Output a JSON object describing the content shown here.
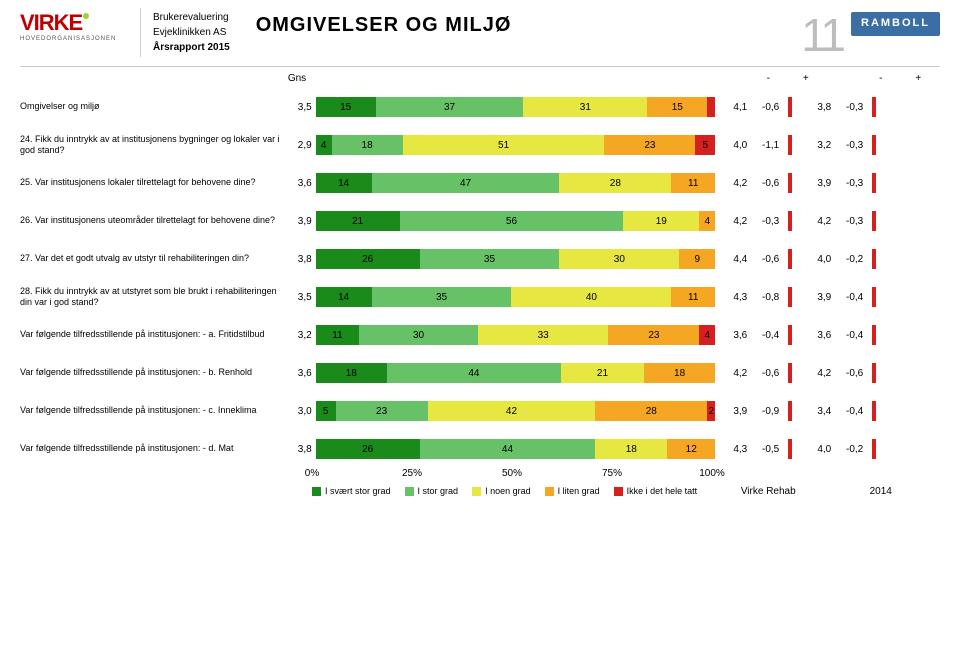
{
  "header": {
    "org_logo_text": "VIRKE",
    "org_logo_sub": "HOVEDORGANISASJONEN",
    "meta_line1": "Brukerevaluering",
    "meta_line2": "Evjeklinikken AS",
    "meta_line3": "Årsrapport 2015",
    "title": "OMGIVELSER OG MILJØ",
    "page_number": "11",
    "partner_logo": "RAMBOLL"
  },
  "col_headers": {
    "gns": "Gns",
    "minus1": "-",
    "plus1": "+",
    "minus2": "-",
    "plus2": "+"
  },
  "chart": {
    "type": "stacked-bar-horizontal",
    "xlim": [
      0,
      100
    ],
    "x_ticks": [
      0,
      25,
      50,
      75,
      100
    ],
    "x_tick_labels": [
      "0%",
      "25%",
      "50%",
      "75%",
      "100%"
    ],
    "segment_colors": [
      "#1a8a1a",
      "#67c167",
      "#e7e741",
      "#f5a623",
      "#d62020"
    ],
    "tick_color": "#d62020",
    "legend": [
      {
        "label": "I svært stor grad",
        "color": "#1a8a1a"
      },
      {
        "label": "I stor grad",
        "color": "#67c167"
      },
      {
        "label": "I noen grad",
        "color": "#e7e741"
      },
      {
        "label": "I liten grad",
        "color": "#f5a623"
      },
      {
        "label": "Ikke i det hele tatt",
        "color": "#d62020"
      }
    ],
    "ref_col1": "Virke Rehab",
    "ref_col2": "2014",
    "rows": [
      {
        "label": "Omgivelser og miljø",
        "gns": "3,5",
        "segs": [
          15,
          37,
          31,
          15,
          2
        ],
        "seg_labels": [
          "15",
          "37",
          "31",
          "15",
          ""
        ],
        "v1": "4,1",
        "d1": "-0,6",
        "v2": "3,8",
        "d2": "-0,3"
      },
      {
        "label": "24. Fikk du inntrykk av at institusjonens bygninger og lokaler var i god stand?",
        "gns": "2,9",
        "segs": [
          4,
          18,
          51,
          23,
          5
        ],
        "seg_labels": [
          "4",
          "18",
          "51",
          "23",
          "5"
        ],
        "v1": "4,0",
        "d1": "-1,1",
        "v2": "3,2",
        "d2": "-0,3"
      },
      {
        "label": "25. Var institusjonens lokaler tilrettelagt for behovene dine?",
        "gns": "3,6",
        "segs": [
          14,
          47,
          28,
          11,
          0
        ],
        "seg_labels": [
          "14",
          "47",
          "28",
          "11",
          ""
        ],
        "v1": "4,2",
        "d1": "-0,6",
        "v2": "3,9",
        "d2": "-0,3"
      },
      {
        "label": "26. Var institusjonens uteområder tilrettelagt for behovene dine?",
        "gns": "3,9",
        "segs": [
          21,
          56,
          19,
          4,
          0
        ],
        "seg_labels": [
          "21",
          "56",
          "19",
          "4",
          ""
        ],
        "v1": "4,2",
        "d1": "-0,3",
        "v2": "4,2",
        "d2": "-0,3"
      },
      {
        "label": "27. Var det et godt utvalg av utstyr til rehabiliteringen din?",
        "gns": "3,8",
        "segs": [
          26,
          35,
          30,
          9,
          0
        ],
        "seg_labels": [
          "26",
          "35",
          "30",
          "9",
          ""
        ],
        "v1": "4,4",
        "d1": "-0,6",
        "v2": "4,0",
        "d2": "-0,2"
      },
      {
        "label": "28. Fikk du inntrykk av at utstyret som ble brukt i rehabiliteringen din var i god stand?",
        "gns": "3,5",
        "segs": [
          14,
          35,
          40,
          11,
          0
        ],
        "seg_labels": [
          "14",
          "35",
          "40",
          "11",
          ""
        ],
        "v1": "4,3",
        "d1": "-0,8",
        "v2": "3,9",
        "d2": "-0,4"
      },
      {
        "label": "Var følgende tilfredsstillende på institusjonen: - a. Fritidstilbud",
        "gns": "3,2",
        "segs": [
          11,
          30,
          33,
          23,
          4
        ],
        "seg_labels": [
          "11",
          "30",
          "33",
          "23",
          "4"
        ],
        "v1": "3,6",
        "d1": "-0,4",
        "v2": "3,6",
        "d2": "-0,4"
      },
      {
        "label": "Var følgende tilfredsstillende på institusjonen: - b. Renhold",
        "gns": "3,6",
        "segs": [
          18,
          44,
          21,
          18,
          0
        ],
        "seg_labels": [
          "18",
          "44",
          "21",
          "18",
          ""
        ],
        "v1": "4,2",
        "d1": "-0,6",
        "v2": "4,2",
        "d2": "-0,6"
      },
      {
        "label": "Var følgende tilfredsstillende på institusjonen: - c. Inneklima",
        "gns": "3,0",
        "segs": [
          5,
          23,
          42,
          28,
          2
        ],
        "seg_labels": [
          "5",
          "23",
          "42",
          "28",
          "2"
        ],
        "v1": "3,9",
        "d1": "-0,9",
        "v2": "3,4",
        "d2": "-0,4"
      },
      {
        "label": "Var følgende tilfredsstillende på institusjonen: - d. Mat",
        "gns": "3,8",
        "segs": [
          26,
          44,
          18,
          12,
          0
        ],
        "seg_labels": [
          "26",
          "44",
          "18",
          "12",
          ""
        ],
        "v1": "4,3",
        "d1": "-0,5",
        "v2": "4,0",
        "d2": "-0,2"
      }
    ]
  }
}
